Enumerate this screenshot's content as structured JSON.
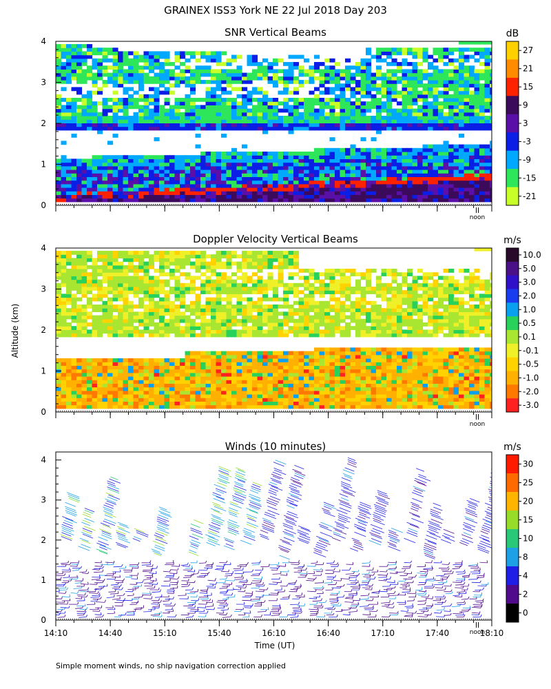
{
  "figure": {
    "title": "GRAINEX ISS3 York NE  22 Jul 2018 Day 203",
    "ylabel": "Altitude (km)",
    "xlabel": "Time (UT)",
    "footnote": "Simple moment winds, no ship navigation correction applied",
    "noon_label": "noon",
    "y_ticks": [
      "0",
      "1",
      "2",
      "3",
      "4"
    ],
    "x_ticks": [
      "14:10",
      "14:40",
      "15:10",
      "15:40",
      "16:10",
      "16:40",
      "17:10",
      "17:40",
      "18:10"
    ]
  },
  "chart_data": [
    {
      "type": "heatmap",
      "title": "SNR Vertical Beams",
      "colorbar_unit": "dB",
      "colorbar_labels": [
        "27",
        "21",
        "15",
        "9",
        "3",
        "-3",
        "-9",
        "-15",
        "-21"
      ],
      "colors": [
        "#ffd000",
        "#ff8c00",
        "#ff2200",
        "#3c0a5a",
        "#5a10a8",
        "#0a1ee6",
        "#00a8ff",
        "#2ee65a",
        "#c8ff28"
      ],
      "x_range": [
        "14:10",
        "18:10"
      ],
      "ylim": [
        0,
        4
      ],
      "layers": [
        {
          "altitude_km": [
            0.15,
            0.5
          ],
          "dominant_db": 9
        },
        {
          "altitude_km": [
            0.4,
            0.8
          ],
          "dominant_db": 15
        },
        {
          "altitude_km": [
            0.5,
            1.5
          ],
          "dominant_db": -3
        },
        {
          "altitude_km": [
            1.85,
            2.05
          ],
          "dominant_db": -3
        },
        {
          "altitude_km": [
            2.2,
            2.8
          ],
          "dominant_db": -15
        },
        {
          "altitude_km": [
            3.0,
            3.9
          ],
          "dominant_db": -15
        }
      ]
    },
    {
      "type": "heatmap",
      "title": "Doppler Velocity Vertical Beams",
      "colorbar_unit": "m/s",
      "colorbar_labels": [
        "10.0",
        "5.0",
        "3.0",
        "2.0",
        "1.0",
        "0.5",
        "0.1",
        "-0.1",
        "-0.5",
        "-1.0",
        "-2.0",
        "-3.0"
      ],
      "colors": [
        "#2a0a2a",
        "#4a1088",
        "#3010c8",
        "#1a3cf0",
        "#0aa0f0",
        "#28d25a",
        "#a8e632",
        "#f0f028",
        "#ffd200",
        "#ffb000",
        "#ff7800",
        "#ff2020"
      ],
      "x_range": [
        "14:10",
        "18:10"
      ],
      "ylim": [
        0,
        4
      ],
      "layers": [
        {
          "altitude_km": [
            0.1,
            1.5
          ],
          "dominant_ms": -0.5
        },
        {
          "altitude_km": [
            1.8,
            3.8
          ],
          "dominant_ms": 0.1
        }
      ]
    },
    {
      "type": "scatter",
      "title": "Winds (10 minutes)",
      "colorbar_unit": "m/s",
      "colorbar_labels": [
        "30",
        "25",
        "20",
        "15",
        "10",
        "8",
        "4",
        "2",
        "0"
      ],
      "colors": [
        "#ff1a00",
        "#ff6a00",
        "#ffb400",
        "#96dc28",
        "#28c878",
        "#1ea0e6",
        "#1e1ee6",
        "#500a8c",
        "#000000"
      ],
      "x_range": [
        "14:10",
        "18:10"
      ],
      "ylim": [
        0,
        4.2
      ],
      "columns": 24,
      "interval_minutes": 10
    }
  ]
}
